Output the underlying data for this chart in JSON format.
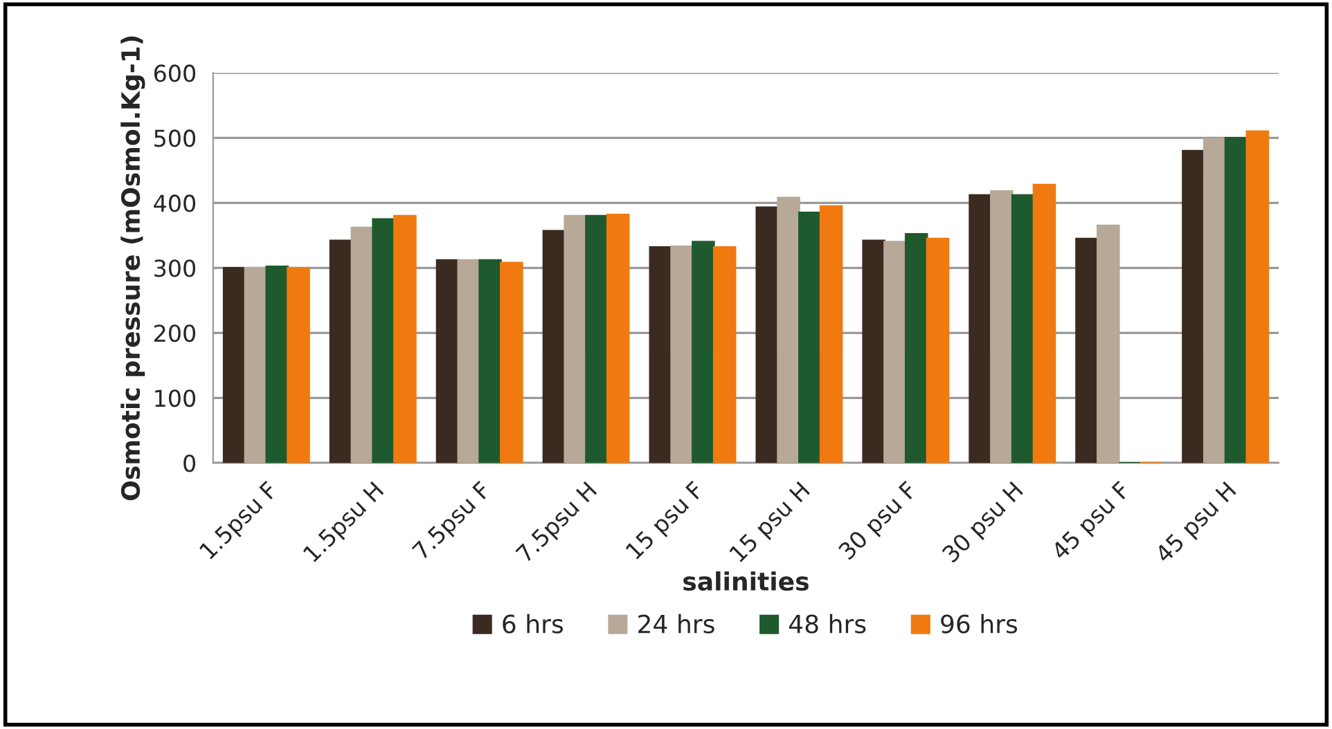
{
  "chart_data": {
    "type": "bar",
    "xlabel": "salinities",
    "ylabel": "Osmotic pressure (mOsmol.Kg-1)",
    "categories": [
      "1.5psu F",
      "1.5psu H",
      "7.5psu F",
      "7.5psu H",
      "15 psu F",
      "15 psu H",
      "30 psu F",
      "30 psu H",
      "45 psu F",
      "45 psu H"
    ],
    "series": [
      {
        "name": "6 hrs",
        "color": "#3b2a20",
        "values": [
          300,
          342,
          312,
          357,
          332,
          393,
          342,
          412,
          345,
          480
        ]
      },
      {
        "name": "24 hrs",
        "color": "#b8a898",
        "values": [
          300,
          362,
          312,
          380,
          333,
          408,
          340,
          418,
          365,
          498
        ]
      },
      {
        "name": "48 hrs",
        "color": "#1f5a2e",
        "values": [
          302,
          375,
          312,
          380,
          340,
          385,
          352,
          412,
          0,
          500
        ]
      },
      {
        "name": "96 hrs",
        "color": "#f07a10",
        "values": [
          300,
          380,
          308,
          382,
          332,
          395,
          345,
          428,
          0,
          510
        ]
      }
    ],
    "ylim": [
      0,
      600
    ],
    "yticks": [
      0,
      100,
      200,
      300,
      400,
      500,
      600
    ],
    "grid": "y",
    "legend": "bottom"
  }
}
